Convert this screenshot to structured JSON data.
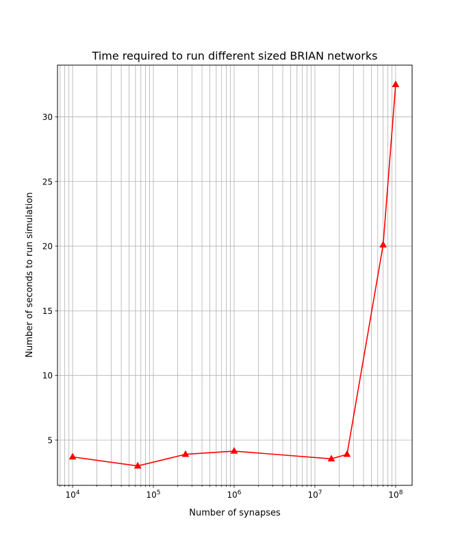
{
  "chart_data": {
    "type": "line",
    "title": "Time required to run different sized BRIAN networks",
    "xlabel": "Number of synapses",
    "ylabel": "Number of seconds to run simulation",
    "xscale": "log",
    "xlim": [
      6500,
      160000000
    ],
    "ylim": [
      1.5,
      34
    ],
    "grid": true,
    "grid_minor_x": true,
    "x_tick_labels": [
      {
        "value": 10000,
        "base": "10",
        "exp": "4"
      },
      {
        "value": 100000,
        "base": "10",
        "exp": "5"
      },
      {
        "value": 1000000,
        "base": "10",
        "exp": "6"
      },
      {
        "value": 10000000,
        "base": "10",
        "exp": "7"
      },
      {
        "value": 100000000,
        "base": "10",
        "exp": "8"
      }
    ],
    "y_ticks": [
      5,
      10,
      15,
      20,
      25,
      30
    ],
    "y_tick_labels": [
      "5",
      "10",
      "15",
      "20",
      "25",
      "30"
    ],
    "series": [
      {
        "color": "#ff0000",
        "marker": "triangle",
        "x": [
          10000,
          64000,
          250000,
          1000000,
          16000000,
          25000000,
          70000000,
          100000000
        ],
        "y": [
          3.7,
          3.0,
          3.9,
          4.15,
          3.55,
          3.9,
          20.1,
          32.5
        ]
      }
    ]
  }
}
